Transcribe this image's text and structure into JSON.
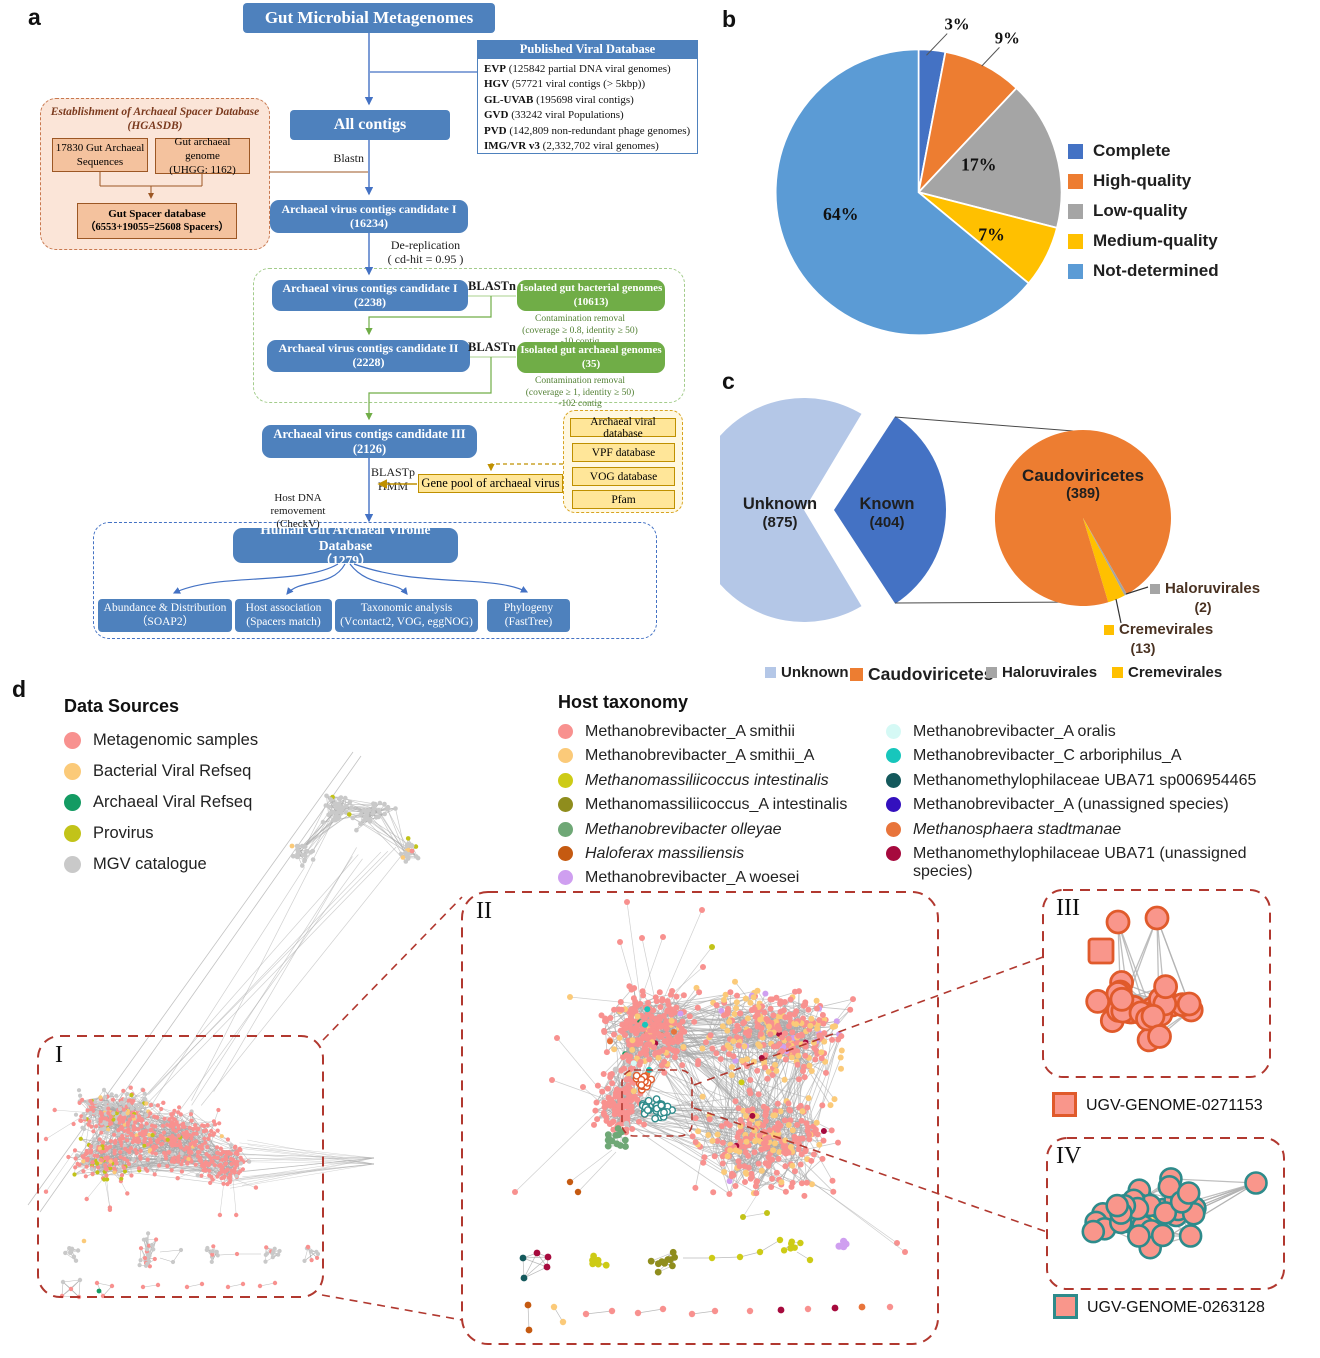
{
  "panels": {
    "a": "a",
    "b": "b",
    "c": "c",
    "d": "d"
  },
  "palette": {
    "flow_blue": "#4E81BD",
    "arrow_blue": "#4472C4",
    "green_box": "#70AD47",
    "green_note": "#538135",
    "gold_fill": "#FFE699",
    "gold_border": "#BF9000",
    "peach_fill": "#FBE5D8",
    "peach_inner": "#F4C29E",
    "peach_border": "#9C5724",
    "dash_red": "#B1382F",
    "edge_gray": "#A9A9A9",
    "ring_orange": "#E05A2B",
    "ring_teal": "#2E8B8B",
    "node_salmon": "#F9968B",
    "node_yellow": "#F6CE6E"
  },
  "a": {
    "gut_microbial": "Gut Microbial Metagenomes",
    "published": {
      "title": "Published Viral Database",
      "items": [
        {
          "name": "EVP",
          "desc": " (125842 partial DNA viral genomes)"
        },
        {
          "name": "HGV",
          "desc": " (57721 viral contigs (> 5kbp))"
        },
        {
          "name": "GL-UVAB",
          "desc": " (195698 viral contigs)"
        },
        {
          "name": "GVD",
          "desc": " (33242 viral Populations)"
        },
        {
          "name": "PVD",
          "desc": " (142,809 non-redundant phage genomes)"
        },
        {
          "name": "IMG/VR v3",
          "desc": " (2,332,702 viral genomes)"
        }
      ]
    },
    "all_contigs": "All contigs",
    "blastn_label": "Blastn",
    "hgasdb": {
      "title1": "Establishment of  Archaeal Spacer Database",
      "title2": "(HGASDB)",
      "box1_l1": "17830 Gut Archaeal",
      "box1_l2": "Sequences",
      "box2_l1": "Gut archaeal genome",
      "box2_l2": "(UHGG: 1162)",
      "spacer_l1": "Gut Spacer database",
      "spacer_l2": "（6553+19055=25608 Spacers）"
    },
    "candidate1a": {
      "l1": "Archaeal virus contigs candidate I",
      "l2": "(16234)"
    },
    "derep_l1": "De-replication",
    "derep_l2": "( cd-hit = 0.95 )",
    "candidate1b": {
      "l1": "Archaeal virus contigs candidate I",
      "l2": "(2238)"
    },
    "blastn1": "BLASTn",
    "green1": {
      "l1": "Isolated gut bacterial genomes",
      "l2": "(10613)"
    },
    "note1_l1": "Contamination removal",
    "note1_l2": "(coverage ≥ 0.8, identity ≥ 50)",
    "note1_l3": "-10 contig",
    "candidate2": {
      "l1": "Archaeal virus contigs candidate II",
      "l2": "(2228)"
    },
    "blastn2": "BLASTn",
    "green2": {
      "l1": "Isolated gut archaeal genomes",
      "l2": "(35)"
    },
    "note2_l1": "Contamination removal",
    "note2_l2": "(coverage ≥ 1, identity ≥ 50)",
    "note2_l3": "-102 contig",
    "candidate3": {
      "l1": "Archaeal virus contigs candidate III",
      "l2": "(2126)"
    },
    "dbs": [
      "Archaeal viral database",
      "VPF database",
      "VOG database",
      "Pfam"
    ],
    "gene_pool": "Gene pool of archaeal virus",
    "blastp": "BLASTp",
    "hmm": "HMM",
    "host_removal_l1": "Host DNA removement",
    "host_removal_l2": "(CheckV)",
    "hgavd": {
      "l1": "Human Gut Archaeal Virome Database",
      "l2": "（1279）"
    },
    "outputs": [
      {
        "l1": "Abundance & Distribution",
        "l2": "（SOAP2）"
      },
      {
        "l1": "Host association",
        "l2": "(Spacers match)"
      },
      {
        "l1": "Taxonomic analysis",
        "l2": "(Vcontact2, VOG, eggNOG)"
      },
      {
        "l1": "Phylogeny",
        "l2": "(FastTree)"
      }
    ]
  },
  "chart_data": [
    {
      "id": "genome_quality_pie",
      "type": "pie",
      "labels": [
        "Complete",
        "High-quality",
        "Low-quality",
        "Medium-quality",
        "Not-determined"
      ],
      "values_percent": [
        3,
        9,
        17,
        7,
        64
      ],
      "colors": [
        "#4472C4",
        "#ED7D31",
        "#A5A5A5",
        "#FFC000",
        "#5B9BD5"
      ],
      "legend_position": "right",
      "start_angle_deg": 0,
      "direction": "clockwise"
    },
    {
      "id": "known_unknown_pie",
      "type": "pie",
      "labels": [
        "Unknown",
        "Known"
      ],
      "values": [
        875,
        404
      ],
      "colors": [
        "#B4C7E7",
        "#4472C4"
      ],
      "exploded_slice": "Known"
    },
    {
      "id": "known_taxonomy_pie",
      "type": "pie",
      "labels": [
        "Caudoviricetes",
        "Haloruvirales",
        "Cremevirales"
      ],
      "values": [
        389,
        2,
        13
      ],
      "colors": [
        "#ED7D31",
        "#A5A5A5",
        "#FFC000"
      ]
    }
  ],
  "c": {
    "unknown_label": "Unknown",
    "unknown_count": "(875)",
    "known_label": "Known",
    "known_count": "(404)",
    "caudo_label": "Caudoviricetes",
    "caudo_count": "(389)",
    "halo_label": "Haloruvirales",
    "halo_count": "(2)",
    "creme_label": "Cremevirales",
    "creme_count": "(13)",
    "legend": [
      {
        "label": "Unknown",
        "color": "#B4C7E7"
      },
      {
        "label": "Caudoviricetes",
        "color": "#ED7D31",
        "big": true
      },
      {
        "label": "Haloruvirales",
        "color": "#A5A5A5"
      },
      {
        "label": "Cremevirales",
        "color": "#FFC000"
      }
    ]
  },
  "d": {
    "data_sources": {
      "title": "Data Sources",
      "items": [
        {
          "label": "Metagenomic samples",
          "color": "#F8918F"
        },
        {
          "label": "Bacterial Viral Refseq",
          "color": "#FBCA79"
        },
        {
          "label": "Archaeal Viral Refseq",
          "color": "#149B63"
        },
        {
          "label": "Provirus",
          "color": "#C2C319"
        },
        {
          "label": "MGV catalogue",
          "color": "#C9C9C9"
        }
      ]
    },
    "host_taxonomy": {
      "title": "Host taxonomy",
      "items": [
        {
          "label": "Methanobrevibacter_A smithii",
          "color": "#F8918F"
        },
        {
          "label": "Methanobrevibacter_A smithii_A",
          "color": "#FBCA79"
        },
        {
          "label": "Methanomassiliicoccus intestinalis",
          "color": "#CDCB16",
          "italic": true
        },
        {
          "label": "Methanomassiliicoccus_A intestinalis",
          "color": "#8F8D1D"
        },
        {
          "label": "Methanobrevibacter olleyae",
          "color": "#6FA876",
          "italic": true
        },
        {
          "label": "Haloferax massiliensis",
          "color": "#C55A11",
          "italic": true
        },
        {
          "label": "Methanobrevibacter_A woesei",
          "color": "#CF9FF0"
        },
        {
          "label": "Methanobrevibacter_A oralis",
          "color": "#D5F9F5"
        },
        {
          "label": "Methanobrevibacter_C arboriphilus_A",
          "color": "#17C6BC"
        },
        {
          "label": "Methanomethylophilaceae UBA71 sp006954465",
          "color": "#14595C"
        },
        {
          "label": "Methanobrevibacter_A (unassigned species)",
          "color": "#3310BE"
        },
        {
          "label": "Methanosphaera stadtmanae",
          "color": "#E8743B",
          "italic": true
        },
        {
          "label": "Methanomethylophilaceae UBA71 (unassigned species)",
          "color": "#A60A3D"
        }
      ]
    },
    "roman": {
      "i": "I",
      "ii": "II",
      "iii": "III",
      "iv": "IV"
    },
    "ugv1": "UGV-GENOME-0271153",
    "ugv2": "UGV-GENOME-0263128"
  }
}
